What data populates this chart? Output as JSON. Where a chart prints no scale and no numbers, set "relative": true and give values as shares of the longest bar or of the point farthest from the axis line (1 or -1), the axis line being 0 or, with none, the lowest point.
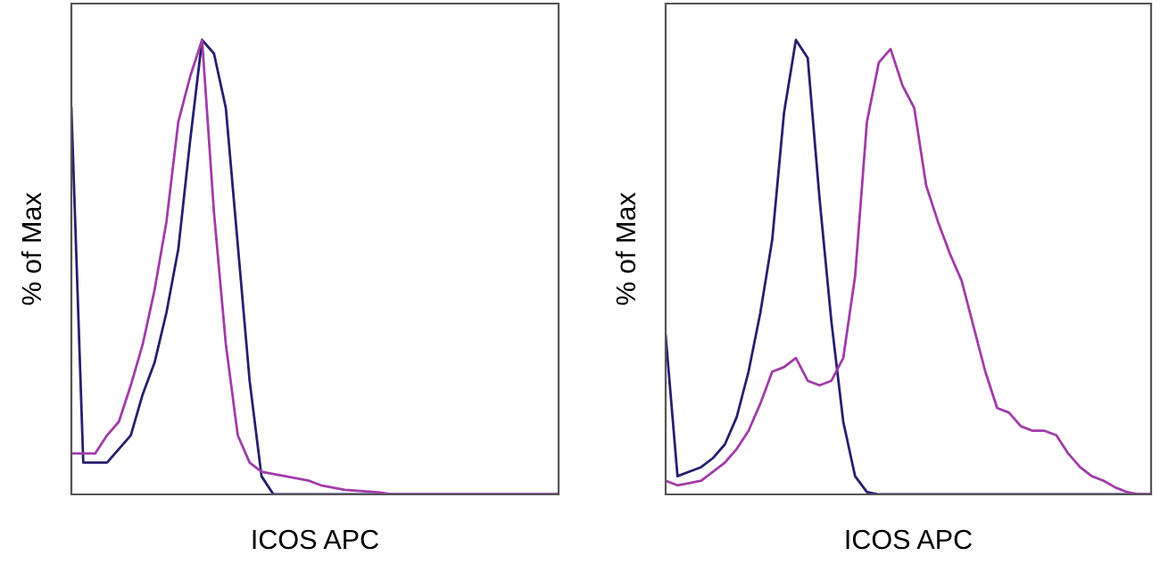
{
  "chart_data": [
    {
      "type": "line",
      "relative": true,
      "xlabel": "ICOS APC",
      "ylabel": "% of Max",
      "tick_labels": false,
      "categories": [
        null,
        null,
        null,
        null,
        null,
        null,
        null,
        null,
        null,
        null,
        null,
        null,
        null,
        null,
        null,
        null,
        null,
        null,
        null,
        null,
        null,
        null,
        null,
        null,
        null,
        null,
        null,
        null,
        null,
        null,
        null,
        null,
        null,
        null,
        null,
        null,
        null,
        null,
        null,
        null,
        null,
        null
      ],
      "series": [
        {
          "color": "#25206e",
          "values": [
            0.85,
            0.07,
            0.07,
            0.07,
            0.1,
            0.13,
            0.22,
            0.29,
            0.4,
            0.54,
            0.78,
            1.0,
            0.97,
            0.85,
            0.55,
            0.25,
            0.04,
            0,
            0,
            0,
            0,
            0,
            0,
            0,
            0,
            0,
            0,
            0,
            0,
            0,
            0,
            0,
            0,
            0,
            0,
            0,
            0,
            0,
            0,
            0,
            0,
            0
          ]
        },
        {
          "color": "#a03ca8",
          "values": [
            0.09,
            0.09,
            0.09,
            0.13,
            0.16,
            0.24,
            0.33,
            0.45,
            0.6,
            0.82,
            0.92,
            1.0,
            0.62,
            0.33,
            0.13,
            0.07,
            0.05,
            0.045,
            0.04,
            0.035,
            0.03,
            0.02,
            0.015,
            0.01,
            0.008,
            0.006,
            0.004,
            0,
            0,
            0,
            0,
            0,
            0,
            0,
            0,
            0,
            0,
            0,
            0,
            0,
            0,
            0
          ]
        }
      ]
    },
    {
      "type": "line",
      "relative": true,
      "xlabel": "ICOS APC",
      "ylabel": "% of Max",
      "tick_labels": false,
      "categories": [
        null,
        null,
        null,
        null,
        null,
        null,
        null,
        null,
        null,
        null,
        null,
        null,
        null,
        null,
        null,
        null,
        null,
        null,
        null,
        null,
        null,
        null,
        null,
        null,
        null,
        null,
        null,
        null,
        null,
        null,
        null,
        null,
        null,
        null,
        null,
        null,
        null,
        null,
        null,
        null,
        null,
        null
      ],
      "series": [
        {
          "color": "#25206e",
          "values": [
            0.35,
            0.04,
            0.05,
            0.06,
            0.08,
            0.11,
            0.17,
            0.27,
            0.4,
            0.56,
            0.84,
            1.0,
            0.96,
            0.65,
            0.38,
            0.16,
            0.04,
            0.005,
            0,
            0,
            0,
            0,
            0,
            0,
            0,
            0,
            0,
            0,
            0,
            0,
            0,
            0,
            0,
            0,
            0,
            0,
            0,
            0,
            0,
            0,
            0,
            0
          ]
        },
        {
          "color": "#a03ca8",
          "values": [
            0.03,
            0.02,
            0.025,
            0.03,
            0.05,
            0.07,
            0.1,
            0.14,
            0.2,
            0.27,
            0.28,
            0.3,
            0.25,
            0.24,
            0.25,
            0.3,
            0.48,
            0.82,
            0.95,
            0.98,
            0.9,
            0.85,
            0.68,
            0.6,
            0.53,
            0.47,
            0.37,
            0.27,
            0.19,
            0.18,
            0.15,
            0.14,
            0.14,
            0.13,
            0.09,
            0.06,
            0.04,
            0.03,
            0.015,
            0.005,
            0,
            0
          ]
        }
      ]
    }
  ]
}
